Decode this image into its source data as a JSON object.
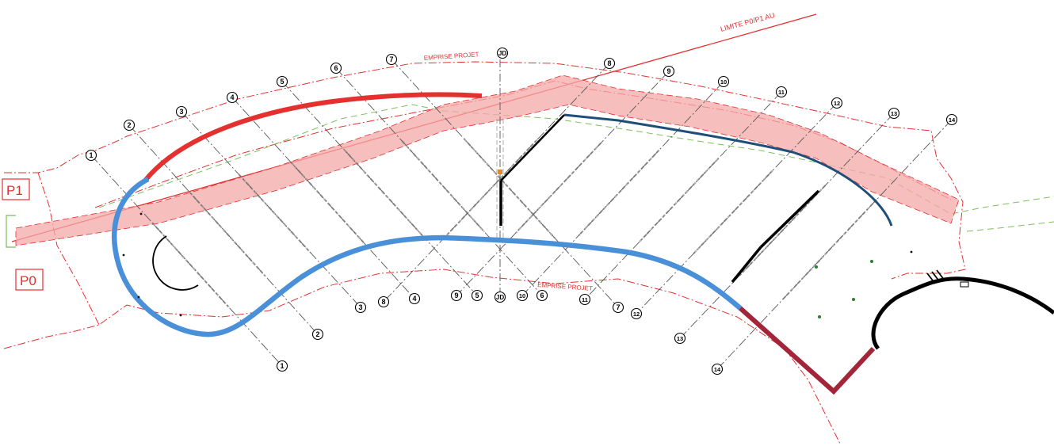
{
  "labels": {
    "limite": "LIMITE P0/P1 AU",
    "emprise_top": "EMPRISE PROJET",
    "emprise_bottom": "EMPRISE PROJET",
    "zone_p1": "P1",
    "zone_p0": "P0"
  },
  "joint_label": "JD",
  "colors": {
    "red_line": "#e53030",
    "red_band": "#f4a8a8",
    "blue_wall": "#4a90d9",
    "navy_wall": "#1f4e79",
    "maroon_wall": "#a3253a",
    "green_dash": "#7cbf5e"
  },
  "sections": [
    {
      "id": "1",
      "top": "1",
      "bottom": "1"
    },
    {
      "id": "2",
      "top": "2",
      "bottom": "2"
    },
    {
      "id": "3",
      "top": "3",
      "bottom": "3"
    },
    {
      "id": "4",
      "top": "4",
      "bottom": "4"
    },
    {
      "id": "5",
      "top": "5",
      "bottom": "5"
    },
    {
      "id": "6",
      "top": "6",
      "bottom": "6"
    },
    {
      "id": "7",
      "top": "7",
      "bottom": "7"
    },
    {
      "id": "8",
      "top": "8",
      "bottom": "8"
    },
    {
      "id": "9",
      "top": "9",
      "bottom": "9"
    },
    {
      "id": "10",
      "top": "10",
      "bottom": "10"
    },
    {
      "id": "11",
      "top": "11",
      "bottom": "11"
    },
    {
      "id": "12",
      "top": "12",
      "bottom": "12"
    },
    {
      "id": "13",
      "top": "13",
      "bottom": "13"
    },
    {
      "id": "14",
      "top": "14",
      "bottom": "14"
    }
  ]
}
